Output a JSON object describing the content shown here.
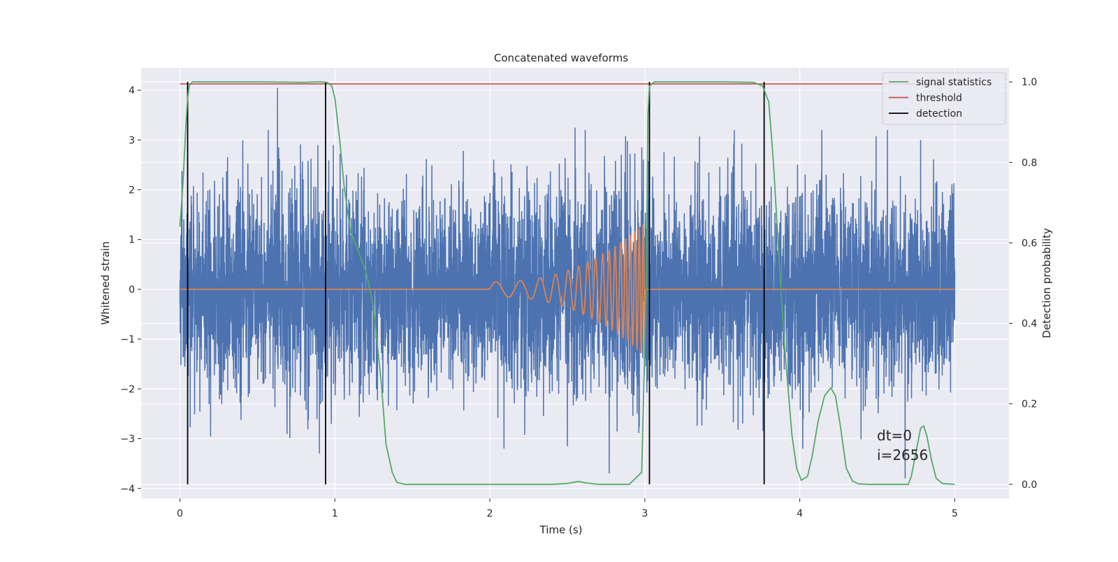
{
  "chart_data": {
    "type": "line",
    "title": "Concatenated waveforms",
    "xlabel": "Time (s)",
    "ylabel_left": "Whitened strain",
    "ylabel_right": "Detection probability",
    "xlim": [
      -0.25,
      5.35
    ],
    "ylim_left": [
      -4.2,
      4.45
    ],
    "ylim_right": [
      -0.035,
      1.035
    ],
    "x_ticks": [
      "0",
      "1",
      "2",
      "3",
      "4",
      "5"
    ],
    "y_ticks_left": [
      "4",
      "3",
      "2",
      "1",
      "0",
      "−1",
      "−2",
      "−3",
      "−4"
    ],
    "y_ticks_right": [
      "1.0",
      "0.8",
      "0.6",
      "0.4",
      "0.2",
      "0.0"
    ],
    "grid": true,
    "legend_placement": "top-right",
    "colors": {
      "strain": "#4c72b0",
      "template": "#dd8452",
      "signal_statistics": "#55a868",
      "threshold": "#c44e52",
      "detection": "#000000",
      "axes_bg": "#eaeaf2",
      "grid": "#ffffff"
    },
    "series": [
      {
        "key": "whitened_strain",
        "axis": "left",
        "x_range": [
          0,
          5
        ],
        "envelope": {
          "x": [
            0,
            0.5,
            1.0,
            1.5,
            2.0,
            2.5,
            3.0,
            3.5,
            4.0,
            4.5,
            5.0
          ],
          "typical_peak": [
            2.2,
            2.4,
            2.5,
            2.2,
            2.3,
            2.5,
            2.6,
            2.4,
            2.4,
            2.3,
            2.2
          ]
        },
        "notable_peaks": [
          {
            "x": 0.63,
            "y": 4.05
          },
          {
            "x": 0.57,
            "y": 3.2
          },
          {
            "x": 2.55,
            "y": 3.25
          },
          {
            "x": 4.78,
            "y": 3.0
          },
          {
            "x": 0.9,
            "y": -3.3
          },
          {
            "x": 2.77,
            "y": -3.7
          },
          {
            "x": 4.68,
            "y": -3.8
          }
        ]
      },
      {
        "key": "template",
        "axis": "left",
        "start": 2.0,
        "merger": 3.0,
        "amp_start": 0.15,
        "amp_end": 1.35,
        "f_start": 6,
        "f_end": 40
      },
      {
        "key": "signal_statistics",
        "name": "signal statistics",
        "axis": "right",
        "x": [
          0.0,
          0.02,
          0.04,
          0.05,
          0.06,
          0.08,
          0.1,
          0.2,
          0.5,
          0.8,
          0.9,
          0.95,
          0.98,
          1.0,
          1.03,
          1.06,
          1.1,
          1.15,
          1.2,
          1.25,
          1.3,
          1.33,
          1.37,
          1.4,
          1.45,
          1.6,
          2.0,
          2.4,
          2.5,
          2.57,
          2.63,
          2.7,
          2.9,
          2.98,
          3.01,
          3.02,
          3.03,
          3.06,
          3.1,
          3.5,
          3.7,
          3.76,
          3.8,
          3.83,
          3.86,
          3.9,
          3.95,
          3.98,
          4.01,
          4.05,
          4.08,
          4.12,
          4.16,
          4.2,
          4.23,
          4.26,
          4.3,
          4.34,
          4.38,
          4.45,
          4.6,
          4.7,
          4.72,
          4.75,
          4.78,
          4.8,
          4.82,
          4.85,
          4.88,
          4.92,
          5.0
        ],
        "y": [
          0.64,
          0.75,
          0.9,
          0.96,
          0.99,
          1.0,
          1.0,
          1.0,
          1.0,
          0.999,
          1.0,
          0.999,
          0.99,
          0.96,
          0.86,
          0.74,
          0.63,
          0.58,
          0.53,
          0.44,
          0.25,
          0.1,
          0.03,
          0.005,
          0.0,
          0.0,
          0.0,
          0.0,
          0.002,
          0.007,
          0.003,
          0.0,
          0.0,
          0.03,
          0.5,
          0.92,
          0.99,
          1.0,
          1.0,
          1.0,
          0.999,
          0.99,
          0.95,
          0.8,
          0.6,
          0.35,
          0.12,
          0.04,
          0.01,
          0.02,
          0.07,
          0.16,
          0.22,
          0.24,
          0.22,
          0.15,
          0.04,
          0.008,
          0.001,
          0.0,
          0.0,
          0.0,
          0.02,
          0.08,
          0.14,
          0.145,
          0.12,
          0.06,
          0.015,
          0.002,
          0.0
        ]
      },
      {
        "key": "threshold",
        "name": "threshold",
        "axis": "right",
        "y": 0.995
      },
      {
        "key": "detection",
        "name": "detection",
        "axis": "right",
        "x": [
          0.05,
          0.94,
          3.03,
          3.77
        ]
      }
    ],
    "annotations": [
      "dt=0",
      "i=2656"
    ]
  }
}
